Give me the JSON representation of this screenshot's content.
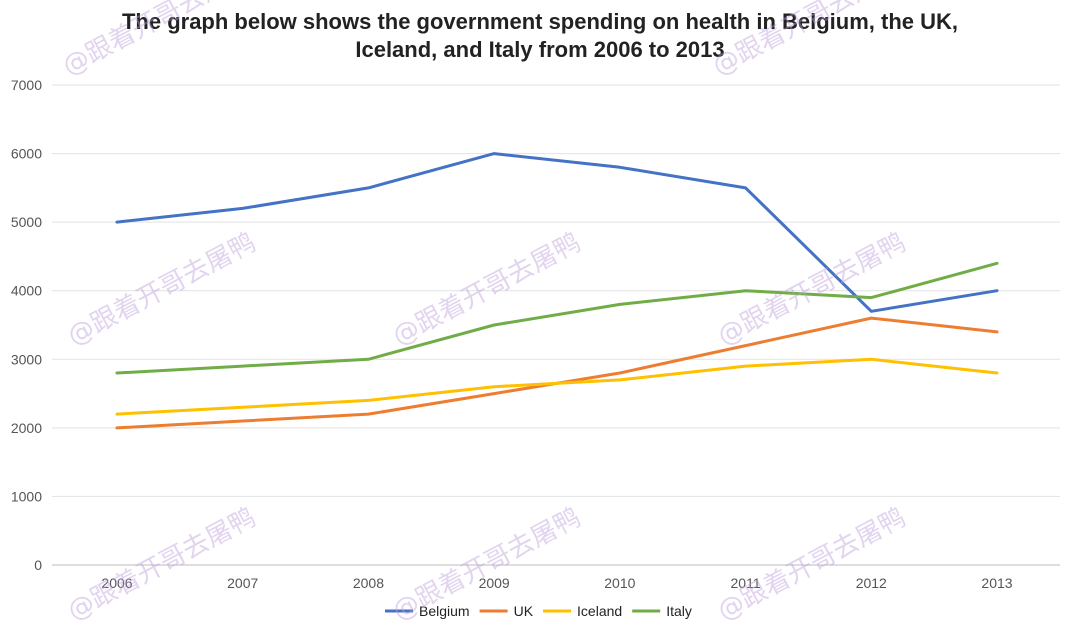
{
  "title": {
    "line1": "The  graph below shows the government spending on health in Belgium, the UK,",
    "line2": "Iceland, and Italy from 2006 to 2013"
  },
  "watermark": "@跟着开哥去屠鸭",
  "chart_data": {
    "type": "line",
    "title": "The  graph below shows the government spending on health in Belgium, the UK, Iceland, and Italy from 2006 to 2013",
    "categories": [
      "2006",
      "2007",
      "2008",
      "2009",
      "2010",
      "2011",
      "2012",
      "2013"
    ],
    "ylim": [
      0,
      7000
    ],
    "yticks": [
      0,
      1000,
      2000,
      3000,
      4000,
      5000,
      6000,
      7000
    ],
    "grid": true,
    "legend": "bottom-center",
    "series": [
      {
        "name": "Belgium",
        "color": "#4472C4",
        "values": [
          5000,
          5200,
          5500,
          6000,
          5800,
          5500,
          3700,
          4000
        ]
      },
      {
        "name": "UK",
        "color": "#ED7D31",
        "values": [
          2000,
          2100,
          2200,
          2500,
          2800,
          3200,
          3600,
          3400
        ]
      },
      {
        "name": "Iceland",
        "color": "#FFC000",
        "values": [
          2200,
          2300,
          2400,
          2600,
          2700,
          2900,
          3000,
          2800
        ]
      },
      {
        "name": "Italy",
        "color": "#70AD47",
        "values": [
          2800,
          2900,
          3000,
          3500,
          3800,
          4000,
          3900,
          4400
        ]
      }
    ]
  }
}
